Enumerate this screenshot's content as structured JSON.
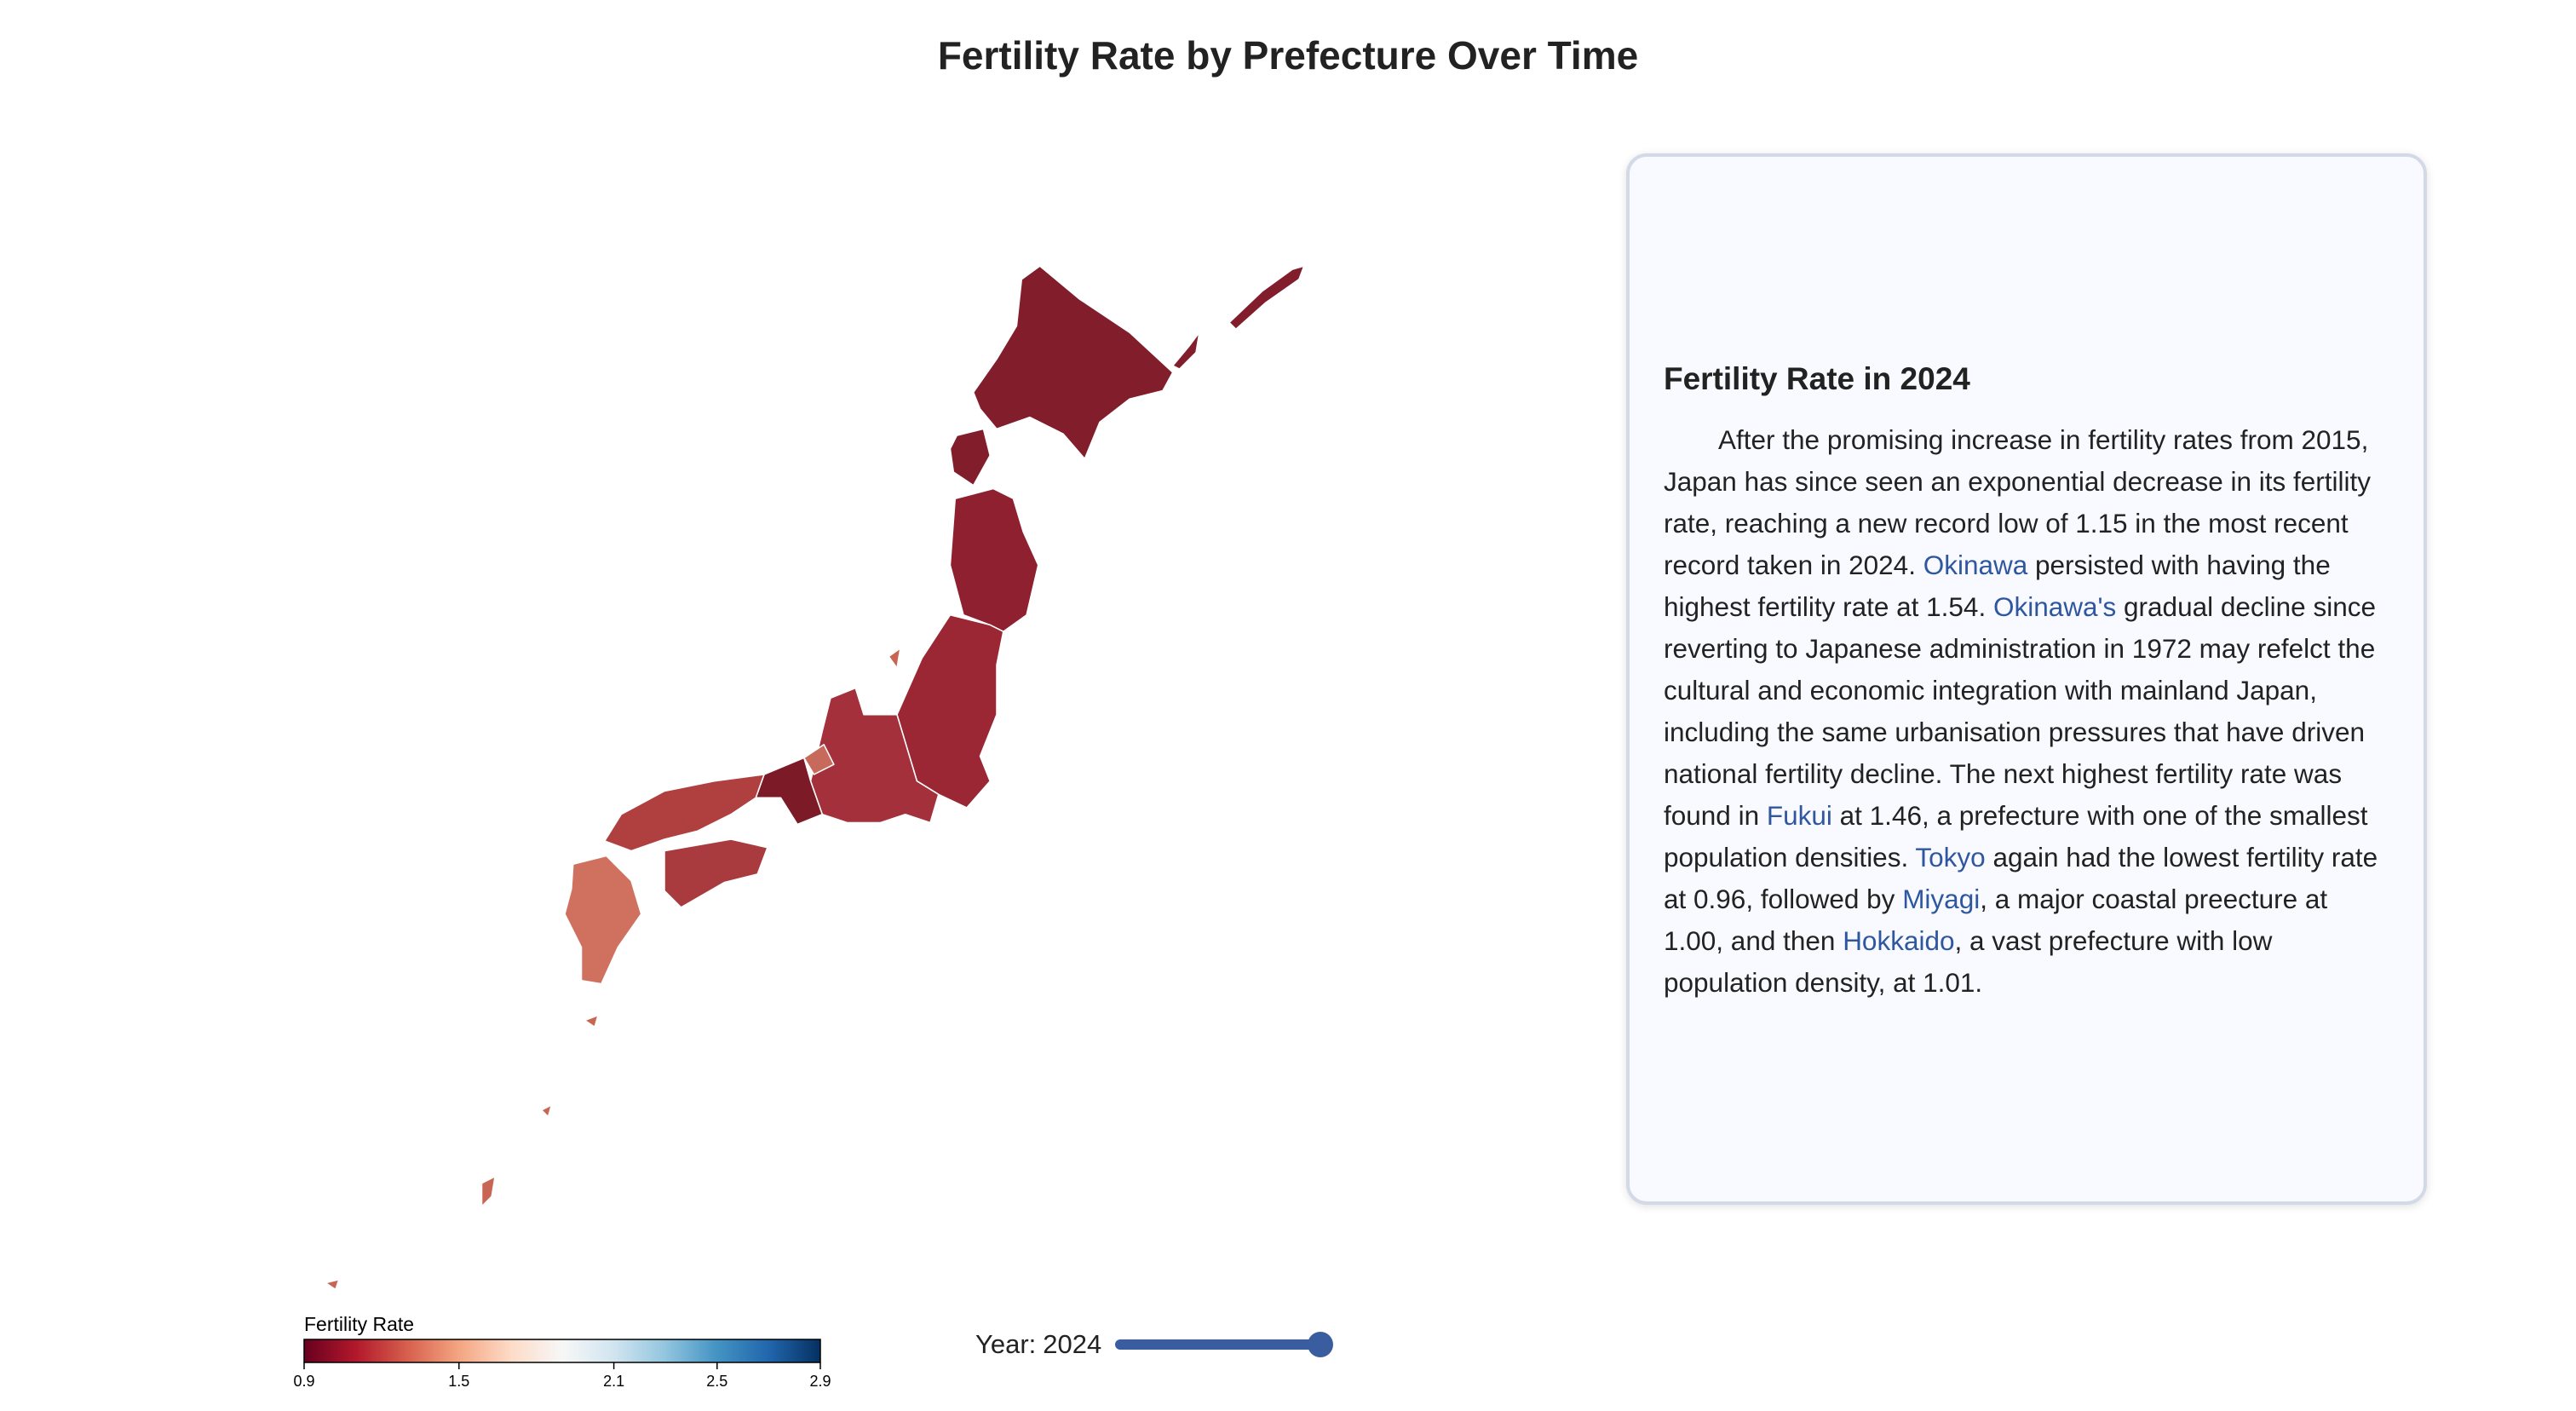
{
  "title": "Fertility Rate by Prefecture Over Time",
  "legend": {
    "title": "Fertility Rate",
    "ticks": [
      0.9,
      1.5,
      2.1,
      2.5,
      2.9
    ],
    "colors": [
      "#67001f",
      "#b2182b",
      "#d6604d",
      "#f4a582",
      "#fddbc7",
      "#f7f7f7",
      "#d1e5f0",
      "#92c5de",
      "#4393c3",
      "#2166ac",
      "#053061"
    ]
  },
  "slider": {
    "label": "Year:",
    "value": 2024
  },
  "panel": {
    "heading": "Fertility Rate in 2024",
    "paragraph": [
      {
        "text": "After the promising increase in fertility rates from 2015, Japan has since seen an exponential decrease in its fertility rate, reaching a new record low of 1.15 in the most recent record taken in 2024. ",
        "link": false
      },
      {
        "text": "Okinawa",
        "link": true
      },
      {
        "text": " persisted with having the highest fertility rate at 1.54. ",
        "link": false
      },
      {
        "text": "Okinawa's",
        "link": true
      },
      {
        "text": " gradual decline since reverting to Japanese administration in 1972 may refelct the cultural and economic integration with mainland Japan, including the same urbanisation pressures that have driven national fertility decline. The next highest fertility rate was found in ",
        "link": false
      },
      {
        "text": "Fukui",
        "link": true
      },
      {
        "text": " at 1.46, a prefecture with one of the smallest population densities. ",
        "link": false
      },
      {
        "text": "Tokyo",
        "link": true
      },
      {
        "text": " again had the lowest fertility rate at 0.96, followed by ",
        "link": false
      },
      {
        "text": "Miyagi",
        "link": true
      },
      {
        "text": ", a major coastal preecture at 1.00, and then ",
        "link": false
      },
      {
        "text": "Hokkaido",
        "link": true
      },
      {
        "text": ", a vast prefecture with low population density, at 1.01.",
        "link": false
      }
    ]
  }
}
